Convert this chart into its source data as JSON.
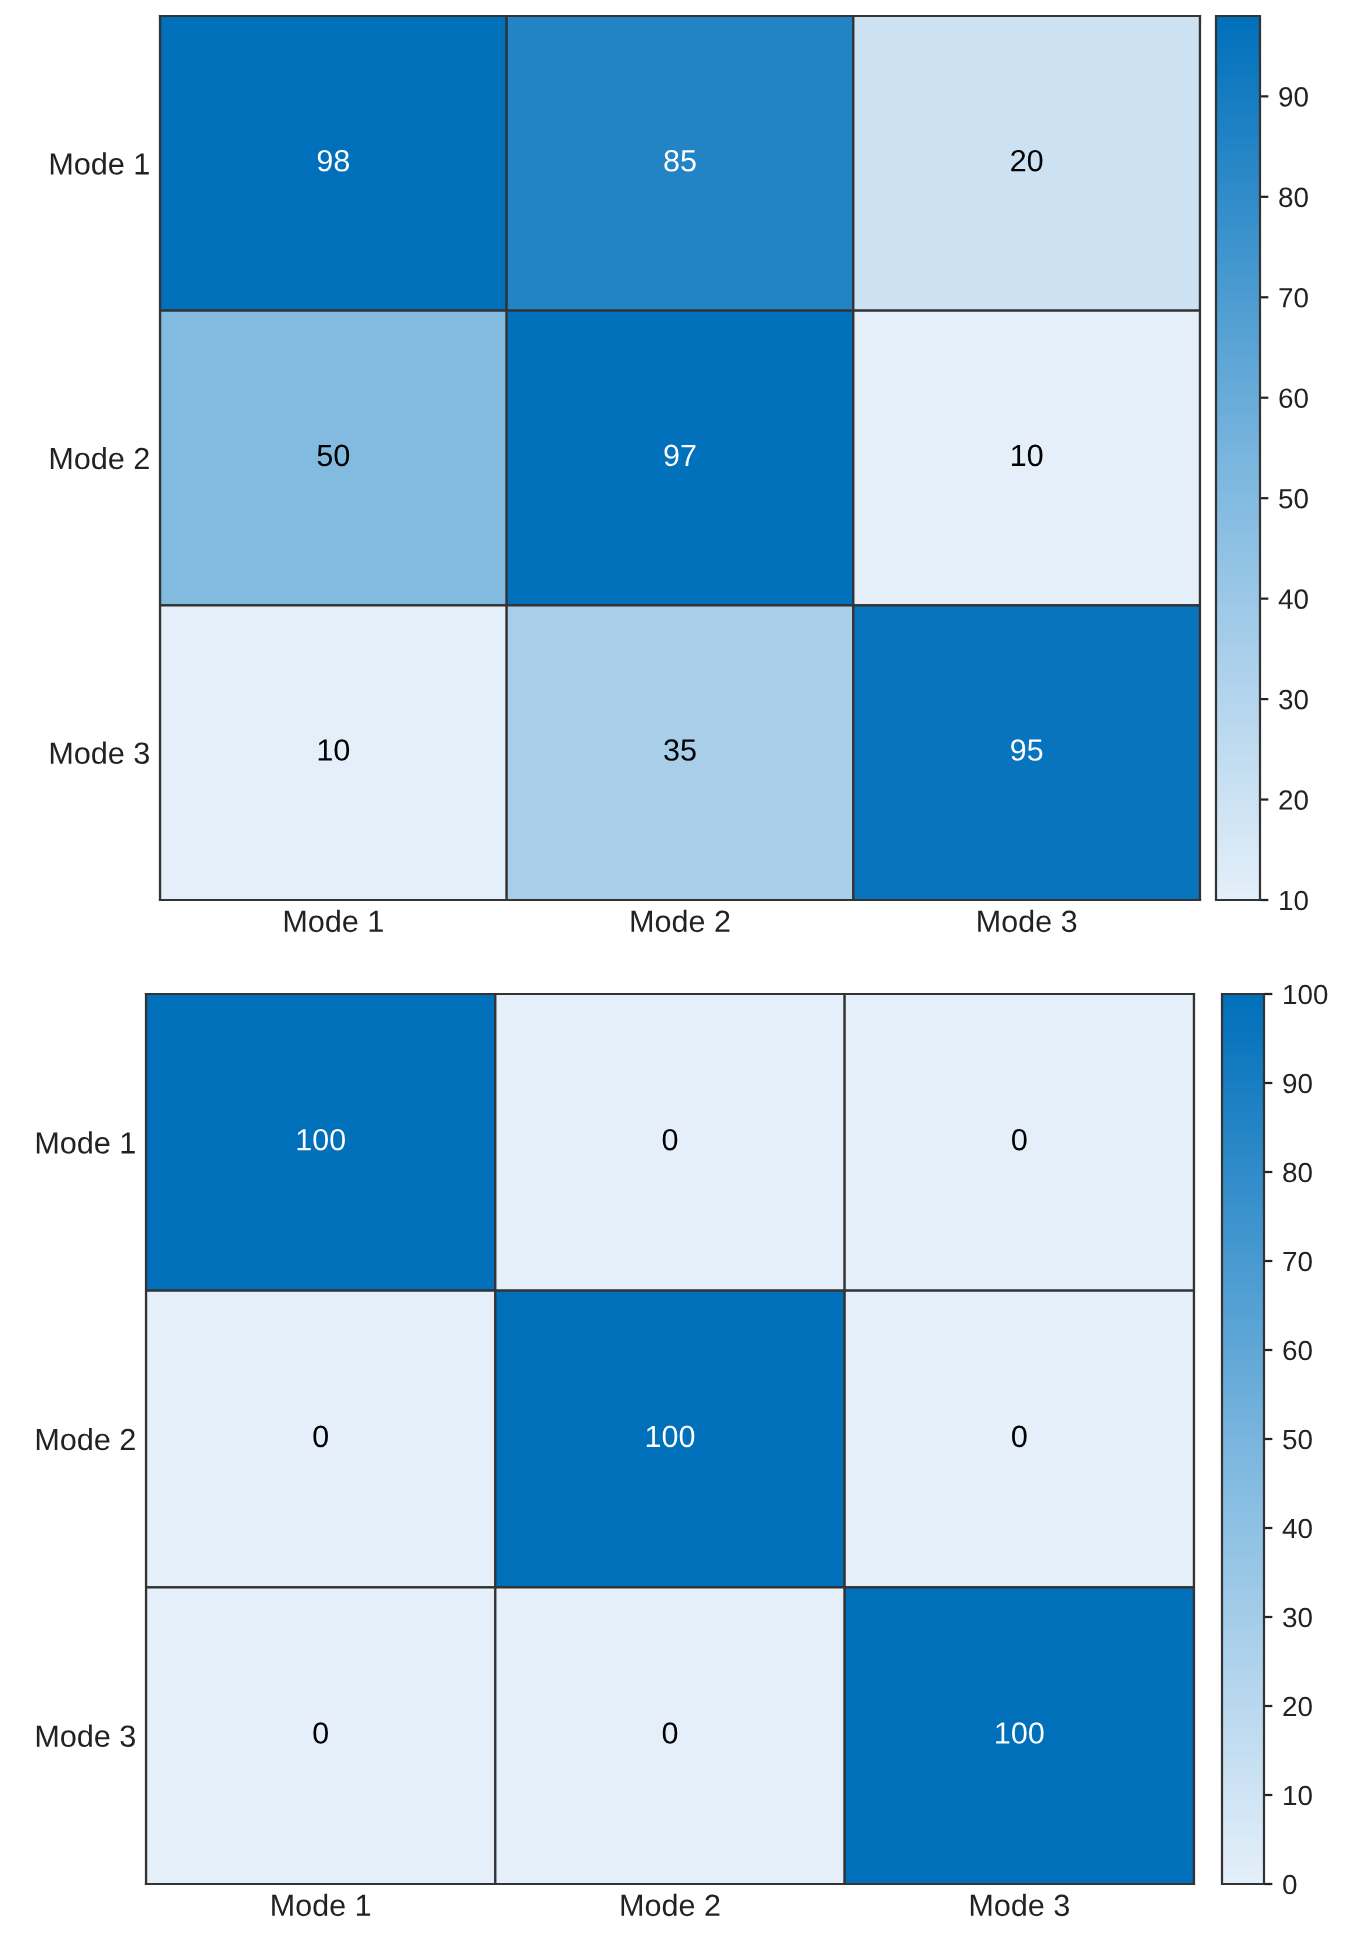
{
  "chart_data": [
    {
      "type": "heatmap",
      "categories": [
        "Mode 1",
        "Mode 2",
        "Mode 3"
      ],
      "y_categories": [
        "Mode 1",
        "Mode 2",
        "Mode 3"
      ],
      "cells": [
        [
          98,
          85,
          20
        ],
        [
          50,
          97,
          10
        ],
        [
          10,
          35,
          95
        ]
      ],
      "data_labels": true,
      "clim": [
        10,
        98
      ],
      "cticks": [
        10,
        20,
        30,
        40,
        50,
        60,
        70,
        80,
        90
      ]
    },
    {
      "type": "heatmap",
      "categories": [
        "Mode 1",
        "Mode 2",
        "Mode 3"
      ],
      "y_categories": [
        "Mode 1",
        "Mode 2",
        "Mode 3"
      ],
      "cells": [
        [
          100,
          0,
          0
        ],
        [
          0,
          100,
          0
        ],
        [
          0,
          0,
          100
        ]
      ],
      "data_labels": true,
      "clim": [
        0,
        100
      ],
      "cticks": [
        0,
        10,
        20,
        30,
        40,
        50,
        60,
        70,
        80,
        90,
        100
      ]
    }
  ]
}
